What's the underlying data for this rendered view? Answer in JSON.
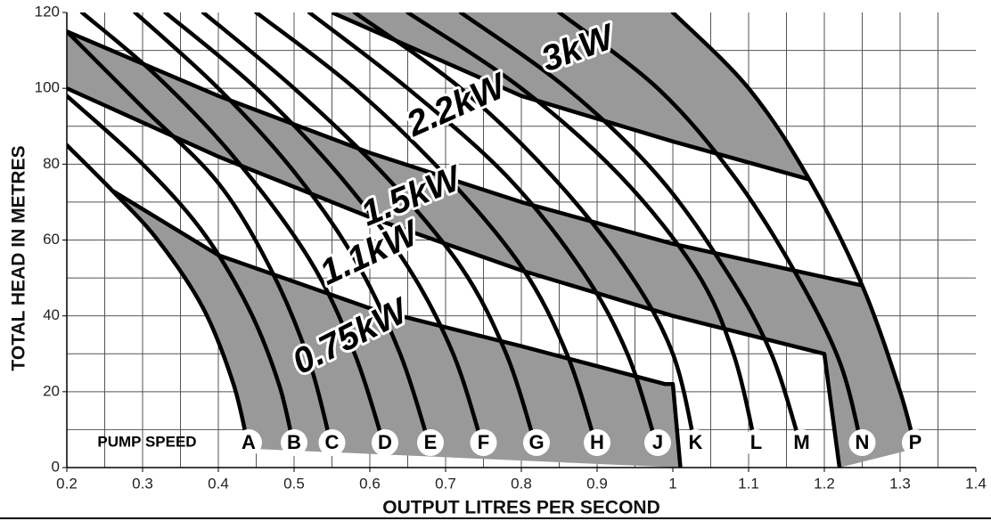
{
  "chart_data": {
    "type": "line",
    "xlabel": "OUTPUT LITRES PER SECOND",
    "ylabel": "TOTAL HEAD IN METRES",
    "speed_label": "PUMP SPEED",
    "xlim": [
      0.2,
      1.4
    ],
    "ylim": [
      0,
      120
    ],
    "xticks": [
      0.2,
      0.3,
      0.4,
      0.5,
      0.6,
      0.7,
      0.8,
      0.9,
      1.0,
      1.1,
      1.2,
      1.3,
      1.4
    ],
    "yticks": [
      0,
      20,
      40,
      60,
      80,
      100,
      120
    ],
    "xgrid": [
      0.25,
      0.3,
      0.35,
      0.4,
      0.45,
      0.5,
      0.55,
      0.6,
      0.65,
      0.7,
      0.75,
      0.8,
      0.85,
      0.9,
      0.95,
      1.0,
      1.05,
      1.1,
      1.15,
      1.2,
      1.25,
      1.3,
      1.35
    ],
    "ygrid": [
      10,
      20,
      30,
      40,
      50,
      60,
      70,
      80,
      90,
      100,
      110
    ],
    "grid": true,
    "series": [
      {
        "name": "A",
        "x": [
          0.2,
          0.26,
          0.32,
          0.38,
          0.42,
          0.44
        ],
        "y": [
          85,
          73,
          60,
          42,
          22,
          5
        ]
      },
      {
        "name": "B",
        "x": [
          0.2,
          0.3,
          0.38,
          0.44,
          0.48,
          0.5
        ],
        "y": [
          98,
          80,
          62,
          42,
          22,
          5
        ]
      },
      {
        "name": "C",
        "x": [
          0.2,
          0.3,
          0.4,
          0.47,
          0.52,
          0.55
        ],
        "y": [
          115,
          95,
          75,
          52,
          28,
          5
        ]
      },
      {
        "name": "D",
        "x": [
          0.22,
          0.32,
          0.42,
          0.52,
          0.58,
          0.62
        ],
        "y": [
          120,
          103,
          82,
          55,
          30,
          5
        ]
      },
      {
        "name": "E",
        "x": [
          0.29,
          0.4,
          0.5,
          0.58,
          0.64,
          0.68
        ],
        "y": [
          120,
          100,
          78,
          55,
          30,
          5
        ]
      },
      {
        "name": "F",
        "x": [
          0.33,
          0.45,
          0.56,
          0.65,
          0.71,
          0.75
        ],
        "y": [
          120,
          100,
          77,
          53,
          30,
          5
        ]
      },
      {
        "name": "G",
        "x": [
          0.38,
          0.5,
          0.62,
          0.72,
          0.78,
          0.82
        ],
        "y": [
          120,
          100,
          77,
          53,
          30,
          5
        ]
      },
      {
        "name": "H",
        "x": [
          0.45,
          0.58,
          0.7,
          0.8,
          0.86,
          0.9
        ],
        "y": [
          120,
          100,
          77,
          53,
          30,
          5
        ]
      },
      {
        "name": "J",
        "x": [
          0.52,
          0.65,
          0.78,
          0.88,
          0.94,
          0.98
        ],
        "y": [
          120,
          100,
          77,
          52,
          30,
          5
        ]
      },
      {
        "name": "K",
        "x": [
          0.58,
          0.72,
          0.84,
          0.94,
          1.0,
          1.03
        ],
        "y": [
          120,
          100,
          77,
          52,
          30,
          5
        ]
      },
      {
        "name": "L",
        "x": [
          0.65,
          0.8,
          0.93,
          1.03,
          1.08,
          1.11
        ],
        "y": [
          120,
          100,
          77,
          52,
          30,
          5
        ]
      },
      {
        "name": "M",
        "x": [
          0.72,
          0.86,
          0.98,
          1.07,
          1.13,
          1.17
        ],
        "y": [
          120,
          100,
          77,
          52,
          30,
          5
        ]
      },
      {
        "name": "N",
        "x": [
          0.85,
          0.98,
          1.08,
          1.16,
          1.22,
          1.25
        ],
        "y": [
          120,
          100,
          77,
          52,
          28,
          5
        ]
      },
      {
        "name": "P",
        "x": [
          1.0,
          1.1,
          1.18,
          1.25,
          1.3,
          1.32
        ],
        "y": [
          120,
          100,
          76,
          48,
          20,
          5
        ]
      }
    ],
    "power": [
      {
        "name": "0.75kW",
        "x": [
          0.26,
          0.4,
          0.6,
          0.8,
          0.99,
          1.0,
          1.01
        ],
        "y": [
          73,
          56,
          42,
          32,
          22,
          22,
          0
        ]
      },
      {
        "name": "1.1kW",
        "x": [
          0.2,
          0.4,
          0.6,
          0.8,
          1.0,
          1.2,
          1.22
        ],
        "y": [
          100,
          82,
          66,
          52,
          40,
          30,
          0
        ]
      },
      {
        "name": "1.5kW",
        "x": [
          0.2,
          0.4,
          0.6,
          0.8,
          1.0,
          1.25
        ],
        "y": [
          115,
          98,
          83,
          70,
          59,
          48
        ]
      },
      {
        "name": "2.2kW",
        "x": [
          0.55,
          0.8,
          1.0,
          1.18
        ],
        "y": [
          120,
          98,
          86,
          76
        ]
      },
      {
        "name": "3kW"
      }
    ],
    "shade_color": "#999999",
    "line_color": "#000000"
  }
}
